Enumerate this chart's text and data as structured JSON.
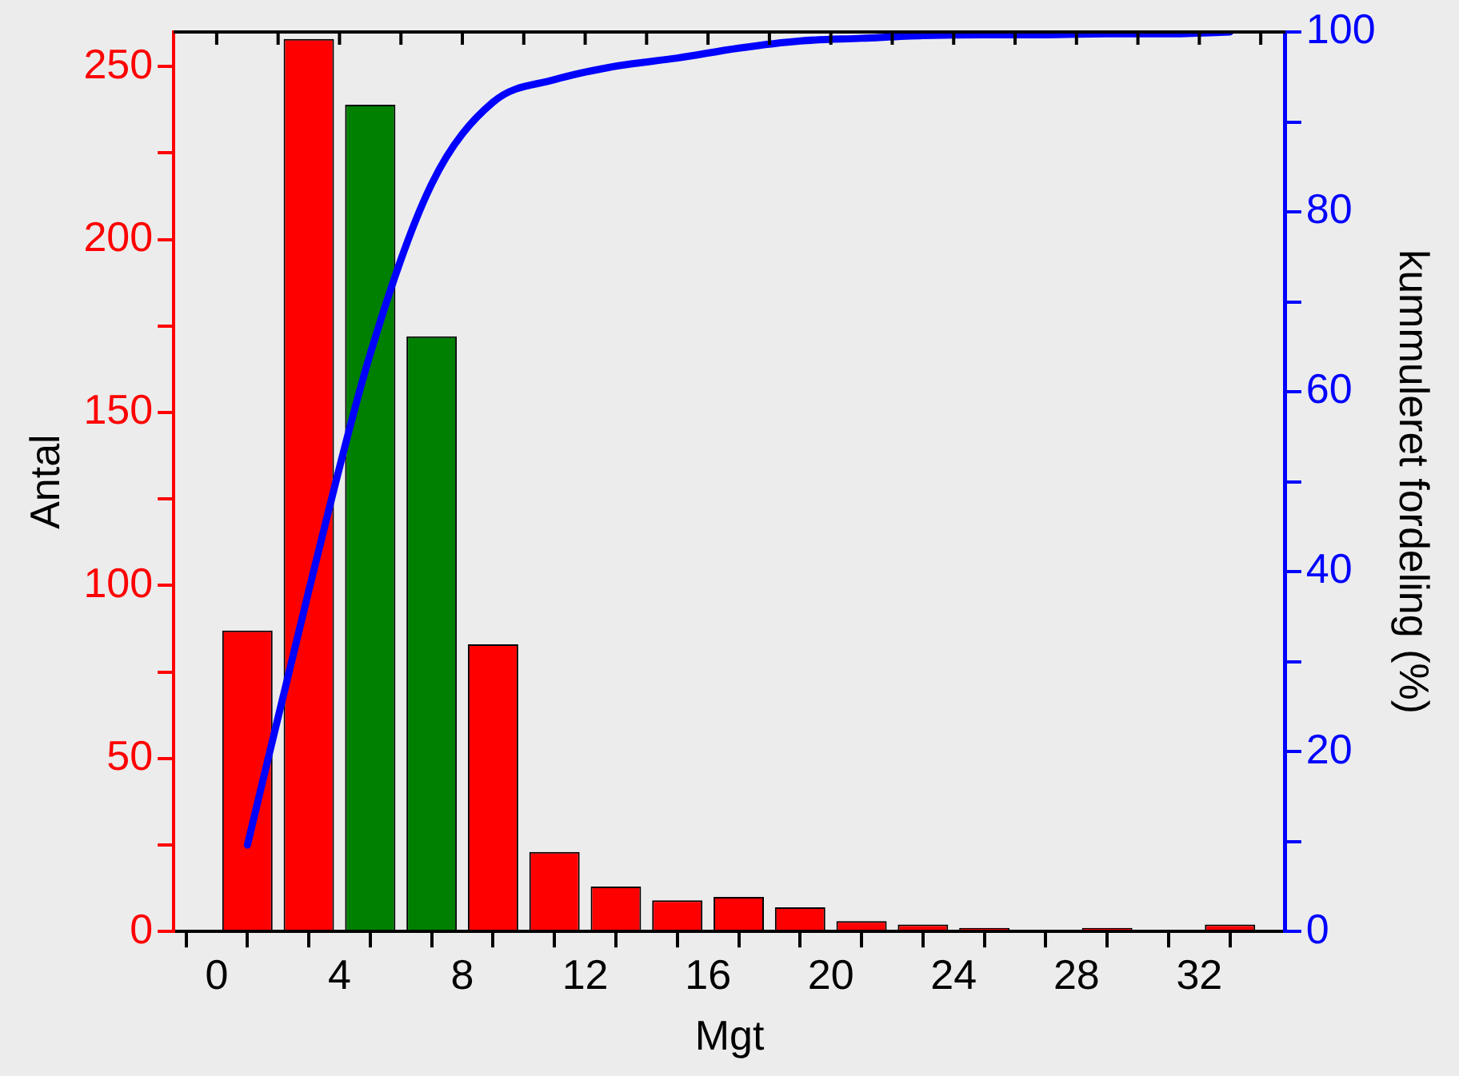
{
  "chart_data": {
    "type": "histogram",
    "xlabel": "Mgt",
    "ylabel": "Antal",
    "y2label": "kummuleret fordeling (%)",
    "bins": [
      0,
      2,
      4,
      6,
      8,
      10,
      12,
      14,
      16,
      18,
      20,
      22,
      24,
      26,
      28,
      30,
      32,
      34
    ],
    "series": [
      {
        "type": "histogram",
        "values": [
          87,
          258,
          239,
          172,
          83,
          23,
          13,
          9,
          10,
          7,
          3,
          2,
          1,
          0,
          1,
          0,
          2
        ],
        "colors": [
          "#ff0000",
          "#ff0000",
          "#008000",
          "#008000",
          "#ff0000",
          "#ff0000",
          "#ff0000",
          "#ff0000",
          "#ff0000",
          "#ff0000",
          "#ff0000",
          "#ff0000",
          "#ff0000",
          "#ff0000",
          "#ff0000",
          "#ff0000",
          "#ff0000"
        ]
      },
      {
        "type": "line",
        "axis": "y2",
        "color": "#0000ff",
        "x": [
          1,
          3,
          5,
          7,
          9,
          11,
          13,
          15,
          17,
          19,
          21,
          23,
          25,
          27,
          29,
          31,
          33
        ],
        "values": [
          9.6,
          37.9,
          64.2,
          83.1,
          92.2,
          94.7,
          96.2,
          97.1,
          98.2,
          99.0,
          99.3,
          99.6,
          99.7,
          99.7,
          99.8,
          99.8,
          100
        ]
      }
    ],
    "xlim": [
      -1.4,
      34.8
    ],
    "ylim": [
      0,
      260
    ],
    "y2lim": [
      0,
      100
    ],
    "xticks": [
      0,
      {
        "value": 2,
        "label": null
      },
      4,
      {
        "value": 6,
        "label": null
      },
      8,
      {
        "value": 10,
        "label": null
      },
      12,
      {
        "value": 14,
        "label": null
      },
      16,
      {
        "value": 18,
        "label": null
      },
      20,
      {
        "value": 22,
        "label": null
      },
      24,
      {
        "value": 26,
        "label": null
      },
      28,
      {
        "value": 30,
        "label": null
      },
      32,
      {
        "value": 34,
        "label": null
      }
    ],
    "yticks": [
      0,
      {
        "value": 25,
        "label": null
      },
      50,
      {
        "value": 75,
        "label": null
      },
      100,
      {
        "value": 125,
        "label": null
      },
      150,
      {
        "value": 175,
        "label": null
      },
      200,
      {
        "value": 225,
        "label": null
      },
      250
    ],
    "y2ticks": [
      0,
      {
        "value": 10,
        "label": null
      },
      20,
      {
        "value": 30,
        "label": null
      },
      40,
      {
        "value": 50,
        "label": null
      },
      60,
      {
        "value": 70,
        "label": null
      },
      80,
      {
        "value": 90,
        "label": null
      },
      100
    ],
    "grid": false,
    "legend": false
  }
}
